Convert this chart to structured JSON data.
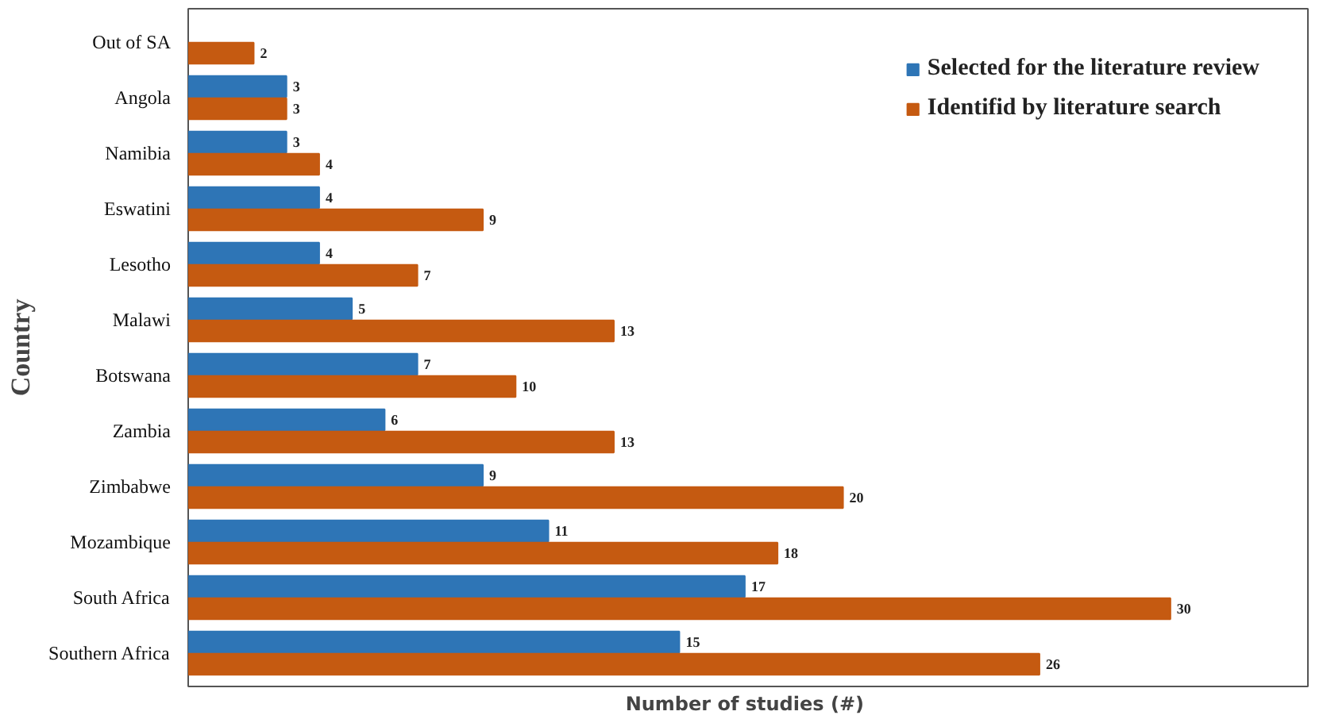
{
  "chart_data": {
    "type": "bar",
    "orientation": "horizontal",
    "xlabel": "Number of  studies (#)",
    "ylabel": "Country",
    "categories": [
      "Out of SA",
      "Angola",
      "Namibia",
      "Eswatini",
      "Lesotho",
      "Malawi",
      "Botswana",
      "Zambia",
      "Zimbabwe",
      "Mozambique",
      "South Africa",
      "Southern Africa"
    ],
    "series": [
      {
        "name": "Selected for the literature review",
        "color": "#2e75b6",
        "values": [
          null,
          3,
          3,
          4,
          4,
          5,
          7,
          6,
          9,
          11,
          17,
          15
        ]
      },
      {
        "name": "Identifid by literature search",
        "color": "#c55a11",
        "values": [
          2,
          3,
          4,
          9,
          7,
          13,
          10,
          13,
          20,
          18,
          30,
          26
        ]
      }
    ],
    "data_labels": true,
    "legend": "top right",
    "grid": false,
    "tick_labels": "y"
  }
}
